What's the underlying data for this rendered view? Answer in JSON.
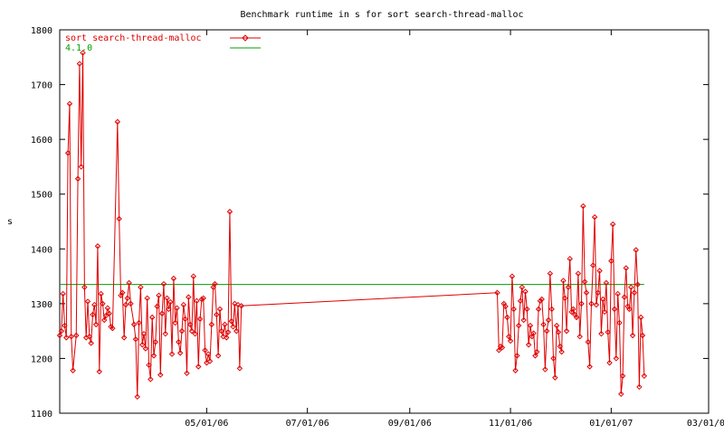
{
  "chart_data": {
    "type": "line",
    "title": "Benchmark runtime in s for sort search-thread-malloc",
    "xlabel": "",
    "ylabel": "s",
    "xlim": [
      "2006-02-01",
      "2007-03-01"
    ],
    "ylim": [
      1100,
      1800
    ],
    "y_ticks": [
      1100,
      1200,
      1300,
      1400,
      1500,
      1600,
      1700,
      1800
    ],
    "x_ticks": [
      {
        "date": "2006-05-01",
        "label": "05/01/06"
      },
      {
        "date": "2006-07-01",
        "label": "07/01/06"
      },
      {
        "date": "2006-09-01",
        "label": "09/01/06"
      },
      {
        "date": "2006-11-01",
        "label": "11/01/06"
      },
      {
        "date": "2007-01-01",
        "label": "01/01/07"
      },
      {
        "date": "2007-03-01",
        "label": "03/01/07"
      }
    ],
    "grid": false,
    "legend_position": "top-left",
    "series": [
      {
        "name": "sort search-thread-malloc",
        "color": "#e00000",
        "marker": "diamond",
        "points": [
          [
            "2006-02-01",
            1242
          ],
          [
            "2006-02-02",
            1250
          ],
          [
            "2006-02-03",
            1318
          ],
          [
            "2006-02-04",
            1260
          ],
          [
            "2006-02-05",
            1238
          ],
          [
            "2006-02-06",
            1575
          ],
          [
            "2006-02-07",
            1665
          ],
          [
            "2006-02-08",
            1240
          ],
          [
            "2006-02-09",
            1178
          ],
          [
            "2006-02-11",
            1242
          ],
          [
            "2006-02-12",
            1528
          ],
          [
            "2006-02-13",
            1738
          ],
          [
            "2006-02-14",
            1550
          ],
          [
            "2006-02-15",
            1758
          ],
          [
            "2006-02-16",
            1330
          ],
          [
            "2006-02-17",
            1238
          ],
          [
            "2006-02-18",
            1304
          ],
          [
            "2006-02-19",
            1240
          ],
          [
            "2006-02-20",
            1228
          ],
          [
            "2006-02-21",
            1280
          ],
          [
            "2006-02-22",
            1298
          ],
          [
            "2006-02-23",
            1262
          ],
          [
            "2006-02-24",
            1405
          ],
          [
            "2006-02-25",
            1176
          ],
          [
            "2006-02-26",
            1318
          ],
          [
            "2006-02-27",
            1300
          ],
          [
            "2006-02-28",
            1270
          ],
          [
            "2006-03-01",
            1278
          ],
          [
            "2006-03-02",
            1292
          ],
          [
            "2006-03-03",
            1282
          ],
          [
            "2006-03-04",
            1258
          ],
          [
            "2006-03-05",
            1255
          ],
          [
            "2006-03-08",
            1632
          ],
          [
            "2006-03-09",
            1455
          ],
          [
            "2006-03-10",
            1315
          ],
          [
            "2006-03-11",
            1320
          ],
          [
            "2006-03-12",
            1238
          ],
          [
            "2006-03-13",
            1298
          ],
          [
            "2006-03-14",
            1310
          ],
          [
            "2006-03-15",
            1338
          ],
          [
            "2006-03-16",
            1300
          ],
          [
            "2006-03-18",
            1262
          ],
          [
            "2006-03-19",
            1235
          ],
          [
            "2006-03-20",
            1130
          ],
          [
            "2006-03-21",
            1265
          ],
          [
            "2006-03-22",
            1330
          ],
          [
            "2006-03-23",
            1225
          ],
          [
            "2006-03-24",
            1245
          ],
          [
            "2006-03-25",
            1218
          ],
          [
            "2006-03-26",
            1310
          ],
          [
            "2006-03-27",
            1188
          ],
          [
            "2006-03-28",
            1162
          ],
          [
            "2006-03-29",
            1275
          ],
          [
            "2006-03-30",
            1205
          ],
          [
            "2006-03-31",
            1230
          ],
          [
            "2006-04-01",
            1295
          ],
          [
            "2006-04-02",
            1315
          ],
          [
            "2006-04-03",
            1170
          ],
          [
            "2006-04-04",
            1282
          ],
          [
            "2006-04-05",
            1336
          ],
          [
            "2006-04-06",
            1245
          ],
          [
            "2006-04-07",
            1310
          ],
          [
            "2006-04-08",
            1290
          ],
          [
            "2006-04-09",
            1303
          ],
          [
            "2006-04-10",
            1208
          ],
          [
            "2006-04-11",
            1346
          ],
          [
            "2006-04-12",
            1265
          ],
          [
            "2006-04-13",
            1292
          ],
          [
            "2006-04-14",
            1230
          ],
          [
            "2006-04-15",
            1210
          ],
          [
            "2006-04-16",
            1250
          ],
          [
            "2006-04-17",
            1298
          ],
          [
            "2006-04-18",
            1272
          ],
          [
            "2006-04-19",
            1173
          ],
          [
            "2006-04-20",
            1312
          ],
          [
            "2006-04-21",
            1262
          ],
          [
            "2006-04-22",
            1250
          ],
          [
            "2006-04-23",
            1350
          ],
          [
            "2006-04-24",
            1245
          ],
          [
            "2006-04-25",
            1305
          ],
          [
            "2006-04-26",
            1185
          ],
          [
            "2006-04-27",
            1272
          ],
          [
            "2006-04-28",
            1308
          ],
          [
            "2006-04-29",
            1310
          ],
          [
            "2006-04-30",
            1215
          ],
          [
            "2006-05-01",
            1192
          ],
          [
            "2006-05-02",
            1208
          ],
          [
            "2006-05-03",
            1195
          ],
          [
            "2006-05-04",
            1262
          ],
          [
            "2006-05-05",
            1330
          ],
          [
            "2006-05-06",
            1336
          ],
          [
            "2006-05-07",
            1280
          ],
          [
            "2006-05-08",
            1205
          ],
          [
            "2006-05-09",
            1290
          ],
          [
            "2006-05-10",
            1250
          ],
          [
            "2006-05-11",
            1240
          ],
          [
            "2006-05-12",
            1262
          ],
          [
            "2006-05-13",
            1238
          ],
          [
            "2006-05-14",
            1248
          ],
          [
            "2006-05-15",
            1468
          ],
          [
            "2006-05-16",
            1268
          ],
          [
            "2006-05-17",
            1258
          ],
          [
            "2006-05-18",
            1300
          ],
          [
            "2006-05-19",
            1250
          ],
          [
            "2006-05-20",
            1298
          ],
          [
            "2006-05-21",
            1182
          ],
          [
            "2006-05-22",
            1296
          ],
          [
            "2006-10-24",
            1320
          ],
          [
            "2006-10-25",
            1215
          ],
          [
            "2006-10-26",
            1222
          ],
          [
            "2006-10-27",
            1220
          ],
          [
            "2006-10-28",
            1300
          ],
          [
            "2006-10-29",
            1295
          ],
          [
            "2006-10-30",
            1275
          ],
          [
            "2006-10-31",
            1240
          ],
          [
            "2006-11-01",
            1232
          ],
          [
            "2006-11-02",
            1350
          ],
          [
            "2006-11-03",
            1290
          ],
          [
            "2006-11-04",
            1178
          ],
          [
            "2006-11-05",
            1205
          ],
          [
            "2006-11-06",
            1260
          ],
          [
            "2006-11-07",
            1305
          ],
          [
            "2006-11-08",
            1330
          ],
          [
            "2006-11-09",
            1270
          ],
          [
            "2006-11-10",
            1322
          ],
          [
            "2006-11-11",
            1290
          ],
          [
            "2006-11-12",
            1225
          ],
          [
            "2006-11-13",
            1260
          ],
          [
            "2006-11-14",
            1240
          ],
          [
            "2006-11-15",
            1246
          ],
          [
            "2006-11-16",
            1205
          ],
          [
            "2006-11-17",
            1212
          ],
          [
            "2006-11-18",
            1290
          ],
          [
            "2006-11-19",
            1305
          ],
          [
            "2006-11-20",
            1308
          ],
          [
            "2006-11-21",
            1262
          ],
          [
            "2006-11-22",
            1180
          ],
          [
            "2006-11-23",
            1250
          ],
          [
            "2006-11-24",
            1270
          ],
          [
            "2006-11-25",
            1355
          ],
          [
            "2006-11-26",
            1290
          ],
          [
            "2006-11-27",
            1200
          ],
          [
            "2006-11-28",
            1165
          ],
          [
            "2006-11-29",
            1260
          ],
          [
            "2006-11-30",
            1248
          ],
          [
            "2006-12-01",
            1222
          ],
          [
            "2006-12-02",
            1212
          ],
          [
            "2006-12-03",
            1342
          ],
          [
            "2006-12-04",
            1310
          ],
          [
            "2006-12-05",
            1250
          ],
          [
            "2006-12-06",
            1330
          ],
          [
            "2006-12-07",
            1382
          ],
          [
            "2006-12-08",
            1285
          ],
          [
            "2006-12-09",
            1290
          ],
          [
            "2006-12-10",
            1280
          ],
          [
            "2006-12-11",
            1275
          ],
          [
            "2006-12-12",
            1355
          ],
          [
            "2006-12-13",
            1240
          ],
          [
            "2006-12-14",
            1300
          ],
          [
            "2006-12-15",
            1478
          ],
          [
            "2006-12-16",
            1340
          ],
          [
            "2006-12-17",
            1320
          ],
          [
            "2006-12-18",
            1230
          ],
          [
            "2006-12-19",
            1185
          ],
          [
            "2006-12-20",
            1300
          ],
          [
            "2006-12-21",
            1370
          ],
          [
            "2006-12-22",
            1458
          ],
          [
            "2006-12-23",
            1298
          ],
          [
            "2006-12-24",
            1320
          ],
          [
            "2006-12-25",
            1360
          ],
          [
            "2006-12-26",
            1245
          ],
          [
            "2006-12-27",
            1308
          ],
          [
            "2006-12-28",
            1285
          ],
          [
            "2006-12-29",
            1338
          ],
          [
            "2006-12-30",
            1248
          ],
          [
            "2006-12-31",
            1192
          ],
          [
            "2007-01-01",
            1378
          ],
          [
            "2007-01-02",
            1445
          ],
          [
            "2007-01-03",
            1290
          ],
          [
            "2007-01-04",
            1200
          ],
          [
            "2007-01-05",
            1318
          ],
          [
            "2007-01-06",
            1265
          ],
          [
            "2007-01-07",
            1135
          ],
          [
            "2007-01-08",
            1168
          ],
          [
            "2007-01-09",
            1312
          ],
          [
            "2007-01-10",
            1365
          ],
          [
            "2007-01-11",
            1295
          ],
          [
            "2007-01-12",
            1290
          ],
          [
            "2007-01-13",
            1330
          ],
          [
            "2007-01-14",
            1242
          ],
          [
            "2007-01-15",
            1320
          ],
          [
            "2007-01-16",
            1398
          ],
          [
            "2007-01-17",
            1335
          ],
          [
            "2007-01-18",
            1148
          ],
          [
            "2007-01-19",
            1275
          ],
          [
            "2007-01-20",
            1242
          ],
          [
            "2007-01-21",
            1168
          ]
        ]
      },
      {
        "name": "4.1.0",
        "color": "#00a000",
        "marker": "none",
        "points": [
          [
            "2006-02-01",
            1335
          ],
          [
            "2007-01-21",
            1335
          ]
        ]
      }
    ]
  }
}
